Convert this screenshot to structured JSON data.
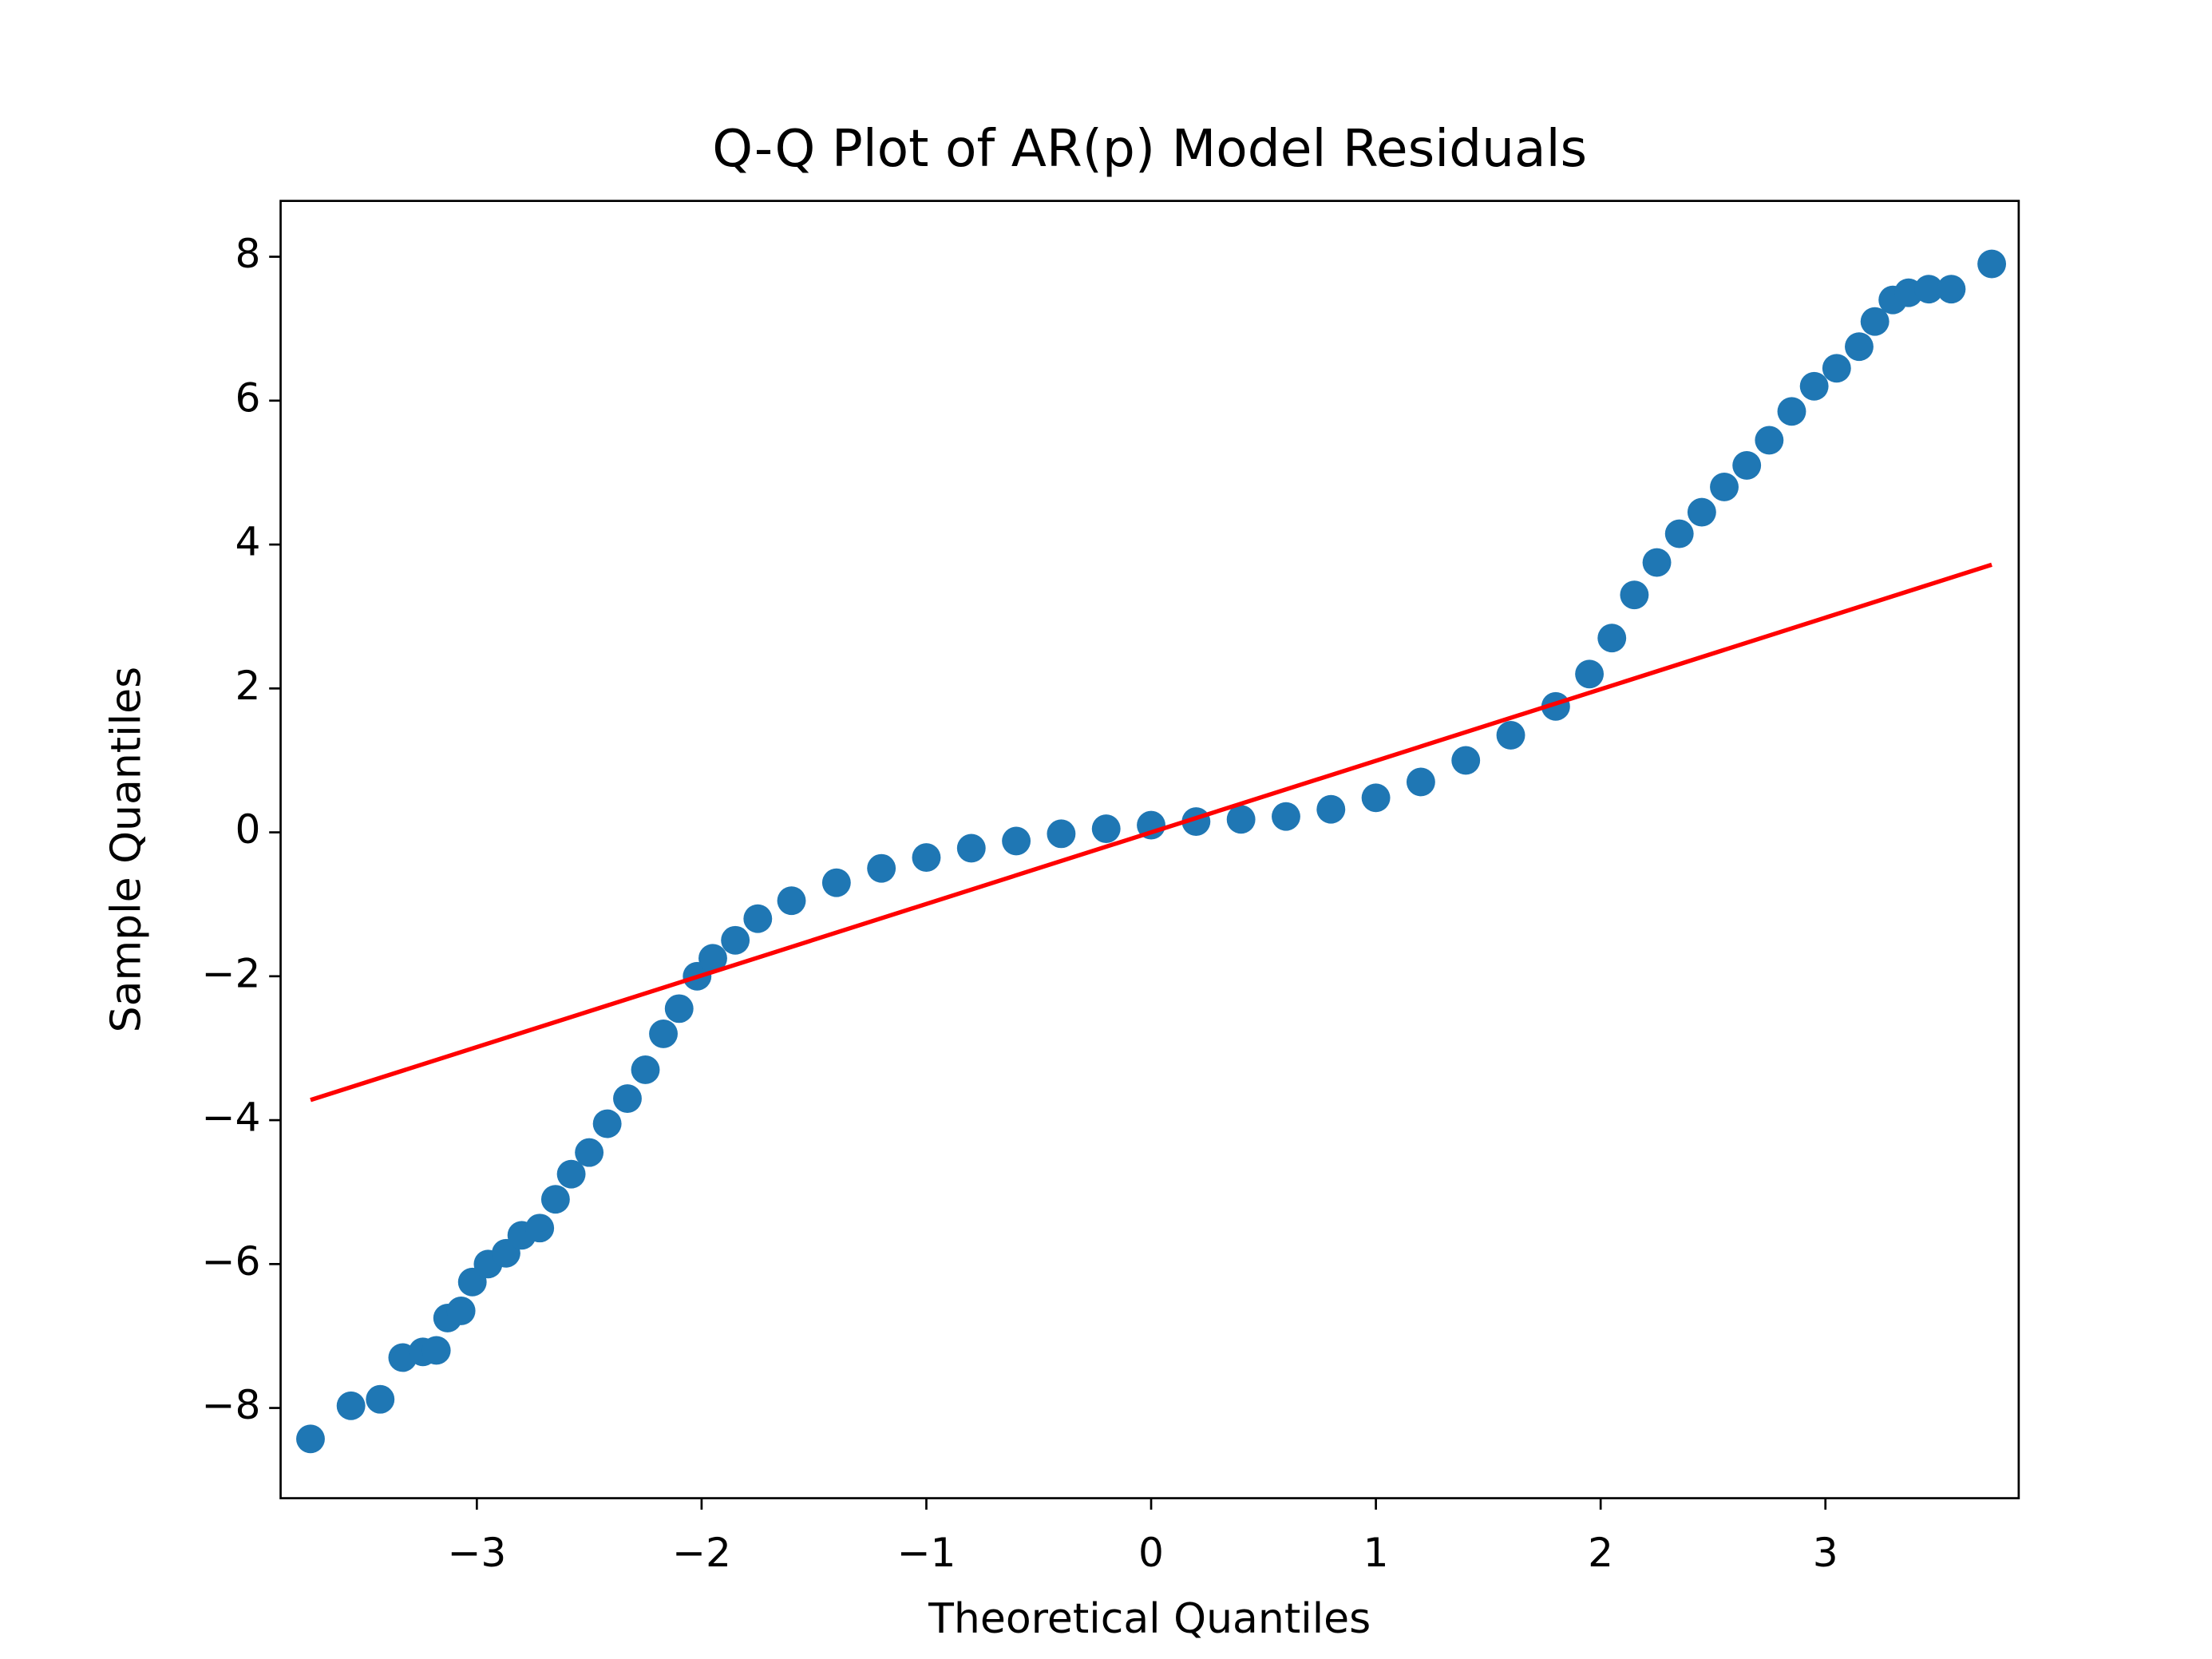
{
  "chart_data": {
    "type": "scatter",
    "title": "Q-Q Plot of AR(p) Model Residuals",
    "x_label": "Theoretical Quantiles",
    "y_label": "Sample Quantiles",
    "xlim": [
      -3.873,
      3.86
    ],
    "ylim": [
      -9.254,
      8.776
    ],
    "xticks": [
      {
        "value": -3,
        "label": "−3"
      },
      {
        "value": -2,
        "label": "−2"
      },
      {
        "value": -1,
        "label": "−1"
      },
      0,
      1,
      2,
      3
    ],
    "yticks": [
      {
        "value": -8,
        "label": "−8"
      },
      {
        "value": -6,
        "label": "−6"
      },
      {
        "value": -4,
        "label": "−4"
      },
      {
        "value": -2,
        "label": "−2"
      },
      0,
      2,
      4,
      6,
      8
    ],
    "grid": false,
    "series": [
      {
        "kind": "scatter",
        "color": "#1f77b4",
        "x": [
          -3.74,
          -3.56,
          -3.43,
          -3.33,
          -3.24,
          -3.18,
          -3.13,
          -3.07,
          -3.02,
          -2.95,
          -2.87,
          -2.8,
          -2.72,
          -2.65,
          -2.58,
          -2.5,
          -2.42,
          -2.33,
          -2.25,
          -2.17,
          -2.1,
          -2.02,
          -1.95,
          -1.85,
          -1.75,
          -1.6,
          -1.4,
          -1.2,
          -1.0,
          -0.8,
          -0.6,
          -0.4,
          -0.2,
          0.0,
          0.2,
          0.4,
          0.6,
          0.8,
          1.0,
          1.2,
          1.4,
          1.6,
          1.8,
          1.95,
          2.05,
          2.15,
          2.25,
          2.35,
          2.45,
          2.55,
          2.65,
          2.75,
          2.85,
          2.95,
          3.05,
          3.15,
          3.22,
          3.3,
          3.37,
          3.46,
          3.56,
          3.74
        ],
        "values": [
          -8.43,
          -7.97,
          -7.88,
          -7.3,
          -7.22,
          -7.2,
          -6.75,
          -6.65,
          -6.25,
          -6.0,
          -5.85,
          -5.6,
          -5.5,
          -5.1,
          -4.75,
          -4.45,
          -4.05,
          -3.7,
          -3.3,
          -2.8,
          -2.45,
          -2.0,
          -1.75,
          -1.5,
          -1.2,
          -0.95,
          -0.7,
          -0.5,
          -0.35,
          -0.22,
          -0.12,
          -0.02,
          0.05,
          0.1,
          0.15,
          0.18,
          0.22,
          0.32,
          0.48,
          0.7,
          1.0,
          1.35,
          1.75,
          2.2,
          2.7,
          3.3,
          3.75,
          4.15,
          4.45,
          4.8,
          5.1,
          5.45,
          5.85,
          6.2,
          6.45,
          6.75,
          7.1,
          7.4,
          7.5,
          7.55,
          7.55,
          7.9
        ]
      },
      {
        "kind": "line",
        "color": "#ff0000",
        "x": [
          -3.74,
          3.74
        ],
        "values": [
          -3.72,
          3.72
        ]
      }
    ]
  }
}
